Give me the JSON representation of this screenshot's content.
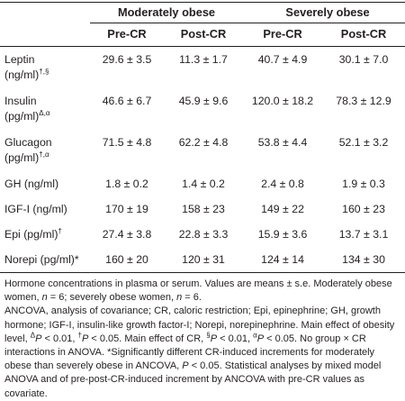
{
  "table": {
    "groups": [
      "Moderately obese",
      "Severely obese"
    ],
    "subheaders": [
      "Pre-CR",
      "Post-CR",
      "Pre-CR",
      "Post-CR"
    ],
    "rows": [
      {
        "name": "Leptin",
        "unit": "(ng/ml)",
        "marks": "†,§",
        "values": [
          "29.6 ± 3.5",
          "11.3 ± 1.7",
          "40.7 ± 4.9",
          "30.1 ± 7.0"
        ]
      },
      {
        "name": "Insulin",
        "unit": "(pg/ml)",
        "marks": "Δ,α",
        "values": [
          "46.6 ± 6.7",
          "45.9 ± 9.6",
          "120.0 ± 18.2",
          "78.3 ± 12.9"
        ]
      },
      {
        "name": "Glucagon",
        "unit": "(pg/ml)",
        "marks": "†,α",
        "values": [
          "71.5 ± 4.8",
          "62.2 ± 4.8",
          "53.8 ± 4.4",
          "52.1 ± 3.2"
        ]
      },
      {
        "name": "GH (ng/ml)",
        "marks": "",
        "values": [
          "1.8 ± 0.2",
          "1.4 ± 0.2",
          "2.4 ± 0.8",
          "1.9 ± 0.3"
        ]
      },
      {
        "name": "IGF-I (ng/ml)",
        "marks": "",
        "values": [
          "170 ± 19",
          "158 ± 23",
          "149 ± 22",
          "160 ± 23"
        ]
      },
      {
        "name": "Epi (pg/ml)",
        "marks": "†",
        "values": [
          "27.4 ± 3.8",
          "22.8 ± 3.3",
          "15.9 ± 3.6",
          "13.7 ± 3.1"
        ]
      },
      {
        "name": "Norepi (pg/ml)",
        "marks": "*",
        "values": [
          "160 ± 20",
          "120 ± 31",
          "124 ± 14",
          "134 ± 30"
        ]
      }
    ]
  },
  "notes": {
    "p1_a": "Hormone concentrations in plasma or serum. Values are means ± s.e. Moderately obese women, ",
    "n_label": "n",
    "p1_b": " = 6; severely obese women, ",
    "p1_c": " = 6.",
    "p2_a": "ANCOVA, analysis of covariance; CR, caloric restriction; Epi, epinephrine; GH, growth hormone; IGF-I, insulin-like growth factor-I; Norepi, norepinephrine. Main effect of obesity level, ",
    "mark_delta": "Δ",
    "p_label": "P",
    "p2_b": " < 0.01, ",
    "mark_dagger": "†",
    "p2_c": " < 0.05. Main effect of CR, ",
    "mark_section": "§",
    "p2_d": " < 0.01, ",
    "mark_alpha": "α",
    "p2_e": " < 0.05. No group × CR interactions in ANOVA. *Significantly different CR-induced increments for moderately obese than severely obese in ANCOVA, ",
    "p2_f": " < 0.05. Statistical analyses by mixed model ANOVA and of pre-post-CR-induced increment by ANCOVA with pre-CR values as covariate."
  }
}
